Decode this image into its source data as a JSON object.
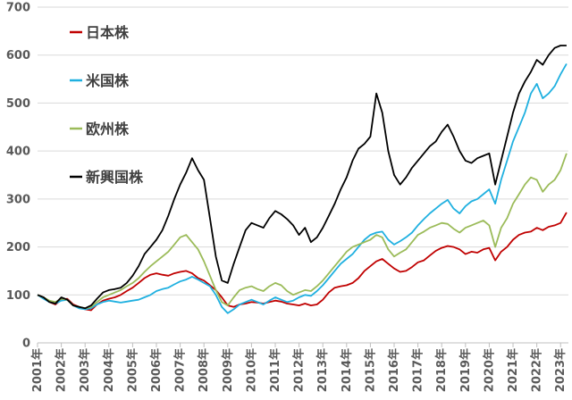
{
  "chart_data": {
    "type": "line",
    "title": "",
    "xlabel": "",
    "ylabel": "",
    "ylim": [
      0,
      700
    ],
    "yticks": [
      0,
      100,
      200,
      300,
      400,
      500,
      600,
      700
    ],
    "xlim": [
      2001,
      2023.33
    ],
    "xticks": [
      "2001年",
      "2002年",
      "2003年",
      "2004年",
      "2005年",
      "2006年",
      "2007年",
      "2008年",
      "2009年",
      "2010年",
      "2011年",
      "2012年",
      "2013年",
      "2014年",
      "2015年",
      "2016年",
      "2017年",
      "2018年",
      "2019年",
      "2020年",
      "2021年",
      "2022年",
      "2023年"
    ],
    "grid": "horizontal",
    "legend_position": "top-left",
    "x": [
      2001.0,
      2001.25,
      2001.5,
      2001.75,
      2002.0,
      2002.25,
      2002.5,
      2002.75,
      2003.0,
      2003.25,
      2003.5,
      2003.75,
      2004.0,
      2004.25,
      2004.5,
      2004.75,
      2005.0,
      2005.25,
      2005.5,
      2005.75,
      2006.0,
      2006.25,
      2006.5,
      2006.75,
      2007.0,
      2007.25,
      2007.5,
      2007.75,
      2008.0,
      2008.25,
      2008.5,
      2008.75,
      2009.0,
      2009.25,
      2009.5,
      2009.75,
      2010.0,
      2010.25,
      2010.5,
      2010.75,
      2011.0,
      2011.25,
      2011.5,
      2011.75,
      2012.0,
      2012.25,
      2012.5,
      2012.75,
      2013.0,
      2013.25,
      2013.5,
      2013.75,
      2014.0,
      2014.25,
      2014.5,
      2014.75,
      2015.0,
      2015.25,
      2015.5,
      2015.75,
      2016.0,
      2016.25,
      2016.5,
      2016.75,
      2017.0,
      2017.25,
      2017.5,
      2017.75,
      2018.0,
      2018.25,
      2018.5,
      2018.75,
      2019.0,
      2019.25,
      2019.5,
      2019.75,
      2020.0,
      2020.25,
      2020.5,
      2020.75,
      2021.0,
      2021.25,
      2021.5,
      2021.75,
      2022.0,
      2022.25,
      2022.5,
      2022.75,
      2023.0,
      2023.25
    ],
    "series": [
      {
        "name": "日本株",
        "color": "#c00000",
        "values": [
          100,
          95,
          85,
          80,
          90,
          92,
          80,
          75,
          70,
          68,
          80,
          88,
          92,
          95,
          100,
          108,
          115,
          125,
          135,
          142,
          145,
          142,
          140,
          145,
          148,
          150,
          145,
          135,
          130,
          120,
          110,
          95,
          78,
          75,
          80,
          82,
          85,
          84,
          82,
          85,
          88,
          86,
          82,
          80,
          78,
          82,
          78,
          80,
          90,
          105,
          115,
          118,
          120,
          125,
          135,
          150,
          160,
          170,
          175,
          165,
          155,
          148,
          150,
          158,
          168,
          172,
          182,
          192,
          198,
          202,
          200,
          195,
          185,
          190,
          188,
          195,
          198,
          172,
          190,
          200,
          215,
          225,
          230,
          232,
          240,
          235,
          242,
          245,
          250,
          272
        ]
      },
      {
        "name": "米国株",
        "color": "#1fb0e0",
        "values": [
          100,
          92,
          85,
          82,
          88,
          90,
          78,
          72,
          70,
          72,
          80,
          85,
          88,
          86,
          84,
          86,
          88,
          90,
          95,
          100,
          108,
          112,
          115,
          122,
          128,
          132,
          138,
          132,
          125,
          118,
          100,
          75,
          62,
          70,
          80,
          85,
          90,
          85,
          80,
          88,
          95,
          90,
          85,
          88,
          95,
          100,
          98,
          108,
          120,
          135,
          150,
          165,
          175,
          185,
          200,
          215,
          225,
          230,
          232,
          215,
          205,
          212,
          220,
          230,
          245,
          258,
          270,
          280,
          290,
          298,
          280,
          270,
          285,
          295,
          300,
          310,
          320,
          290,
          340,
          380,
          420,
          450,
          480,
          520,
          540,
          510,
          520,
          535,
          560,
          582
        ]
      },
      {
        "name": "欧州株",
        "color": "#9bbb59",
        "values": [
          100,
          95,
          88,
          85,
          92,
          90,
          78,
          75,
          72,
          75,
          85,
          95,
          100,
          105,
          110,
          118,
          125,
          135,
          148,
          160,
          170,
          180,
          190,
          205,
          220,
          225,
          210,
          195,
          170,
          140,
          110,
          85,
          78,
          95,
          110,
          115,
          118,
          112,
          108,
          118,
          125,
          120,
          108,
          100,
          105,
          110,
          108,
          118,
          130,
          145,
          160,
          175,
          190,
          200,
          205,
          210,
          215,
          225,
          220,
          195,
          180,
          188,
          195,
          210,
          225,
          232,
          240,
          245,
          250,
          248,
          238,
          230,
          240,
          245,
          250,
          255,
          245,
          200,
          240,
          260,
          290,
          310,
          330,
          345,
          340,
          315,
          330,
          340,
          360,
          395
        ]
      },
      {
        "name": "新興国株",
        "color": "#000000",
        "values": [
          100,
          95,
          85,
          82,
          95,
          90,
          78,
          75,
          72,
          78,
          92,
          105,
          110,
          112,
          115,
          125,
          140,
          160,
          185,
          200,
          215,
          235,
          265,
          300,
          330,
          355,
          385,
          360,
          340,
          260,
          180,
          130,
          125,
          165,
          200,
          235,
          250,
          245,
          240,
          260,
          275,
          268,
          258,
          245,
          225,
          240,
          210,
          220,
          240,
          265,
          290,
          320,
          345,
          380,
          405,
          415,
          430,
          520,
          480,
          400,
          350,
          330,
          345,
          365,
          380,
          395,
          410,
          420,
          440,
          455,
          430,
          400,
          380,
          375,
          385,
          390,
          395,
          330,
          380,
          430,
          480,
          520,
          545,
          565,
          590,
          580,
          600,
          615,
          620,
          620
        ]
      }
    ]
  }
}
